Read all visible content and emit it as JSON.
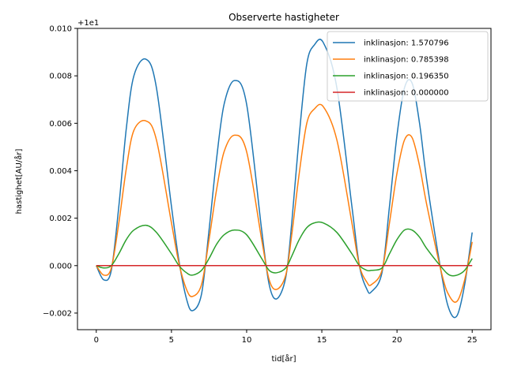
{
  "chart_data": {
    "type": "line",
    "title": "Observerte hastigheter",
    "xlabel": "tid[år]",
    "ylabel": "hastighet[AU/år]",
    "offset_label": "+1e1",
    "xlim": [
      -1.25,
      26.25
    ],
    "ylim": [
      -0.0027,
      0.01
    ],
    "xticks": [
      0,
      5,
      10,
      15,
      20,
      25
    ],
    "xtick_labels": [
      "0",
      "5",
      "10",
      "15",
      "20",
      "25"
    ],
    "yticks": [
      -0.002,
      0.0,
      0.002,
      0.004,
      0.006,
      0.008,
      0.01
    ],
    "ytick_labels": [
      "−0.002",
      "0.000",
      "0.002",
      "0.004",
      "0.006",
      "0.008",
      "0.010"
    ],
    "legend_position": "upper right",
    "grid": false,
    "series": [
      {
        "name": "inklinasjon: 1.570796",
        "color": "#1f77b4",
        "x": [
          0,
          0.5,
          1.0,
          1.5,
          2.0,
          2.5,
          3.3,
          4.0,
          5.0,
          5.5,
          6.0,
          6.4,
          7.0,
          7.5,
          8.0,
          8.5,
          9.2,
          10.0,
          11.0,
          11.5,
          12.0,
          12.6,
          13.0,
          13.5,
          14.0,
          14.5,
          15.1,
          16.0,
          17.0,
          17.5,
          18.0,
          18.3,
          19.0,
          19.5,
          20.0,
          20.5,
          21.0,
          21.5,
          22.0,
          23.0,
          23.5,
          24.0,
          24.5,
          25.0
        ],
        "y": [
          0.0,
          -0.0006,
          -0.0002,
          0.0025,
          0.0058,
          0.008,
          0.0087,
          0.0075,
          0.0025,
          0.0002,
          -0.0014,
          -0.0019,
          -0.0012,
          0.0015,
          0.0045,
          0.0068,
          0.0078,
          0.0068,
          0.0015,
          -0.0008,
          -0.0014,
          -0.0005,
          0.0018,
          0.0055,
          0.0085,
          0.0093,
          0.0094,
          0.0075,
          0.0025,
          0.0,
          -0.001,
          -0.0011,
          -0.0003,
          0.0025,
          0.0055,
          0.0075,
          0.0077,
          0.006,
          0.0035,
          -0.0005,
          -0.0019,
          -0.0021,
          -0.0008,
          0.0014
        ]
      },
      {
        "name": "inklinasjon: 0.785398",
        "color": "#ff7f0e",
        "x": [
          0,
          0.5,
          1.0,
          1.5,
          2.0,
          2.5,
          3.3,
          4.0,
          5.0,
          5.5,
          6.0,
          6.4,
          7.0,
          7.5,
          8.0,
          8.5,
          9.2,
          10.0,
          11.0,
          11.5,
          12.0,
          12.6,
          13.0,
          13.5,
          14.0,
          14.5,
          15.1,
          16.0,
          17.0,
          17.5,
          18.0,
          18.3,
          19.0,
          19.5,
          20.0,
          20.5,
          21.0,
          21.5,
          22.0,
          23.0,
          23.5,
          24.0,
          24.5,
          25.0
        ],
        "y": [
          0.0,
          -0.0004,
          -0.0001,
          0.0018,
          0.0041,
          0.0057,
          0.0061,
          0.0053,
          0.0018,
          0.0001,
          -0.001,
          -0.0013,
          -0.0008,
          0.0011,
          0.0032,
          0.0048,
          0.0055,
          0.0048,
          0.0011,
          -0.0006,
          -0.001,
          -0.0004,
          0.0013,
          0.0039,
          0.006,
          0.0066,
          0.0067,
          0.0053,
          0.0018,
          0.0,
          -0.0007,
          -0.0008,
          -0.0002,
          0.0018,
          0.0039,
          0.0053,
          0.0054,
          0.0042,
          0.0025,
          -0.0004,
          -0.0013,
          -0.0015,
          -0.0006,
          0.001
        ]
      },
      {
        "name": "inklinasjon: 0.196350",
        "color": "#2ca02c",
        "x": [
          0,
          0.5,
          1.0,
          1.5,
          2.0,
          2.5,
          3.3,
          4.0,
          5.0,
          5.5,
          6.0,
          6.4,
          7.0,
          7.5,
          8.0,
          8.5,
          9.2,
          10.0,
          11.0,
          11.5,
          12.0,
          12.6,
          13.0,
          13.5,
          14.0,
          14.5,
          15.1,
          16.0,
          17.0,
          17.5,
          18.0,
          18.3,
          19.0,
          19.5,
          20.0,
          20.5,
          21.0,
          21.5,
          22.0,
          23.0,
          23.5,
          24.0,
          24.5,
          25.0
        ],
        "y": [
          0.0,
          -0.0001,
          0.0,
          0.0005,
          0.0011,
          0.0015,
          0.0017,
          0.0014,
          0.0005,
          0.0,
          -0.0003,
          -0.0004,
          -0.0002,
          0.0003,
          0.0009,
          0.0013,
          0.0015,
          0.0013,
          0.0003,
          -0.0002,
          -0.0003,
          -0.0001,
          0.0004,
          0.0011,
          0.0016,
          0.0018,
          0.0018,
          0.0014,
          0.0005,
          0.0,
          -0.0002,
          -0.0002,
          -0.0001,
          0.0005,
          0.0011,
          0.0015,
          0.0015,
          0.0012,
          0.0007,
          -0.0001,
          -0.0004,
          -0.0004,
          -0.0002,
          0.0003
        ]
      },
      {
        "name": "inklinasjon: 0.000000",
        "color": "#d62728",
        "x": [
          0,
          25
        ],
        "y": [
          0.0,
          0.0
        ]
      }
    ]
  }
}
